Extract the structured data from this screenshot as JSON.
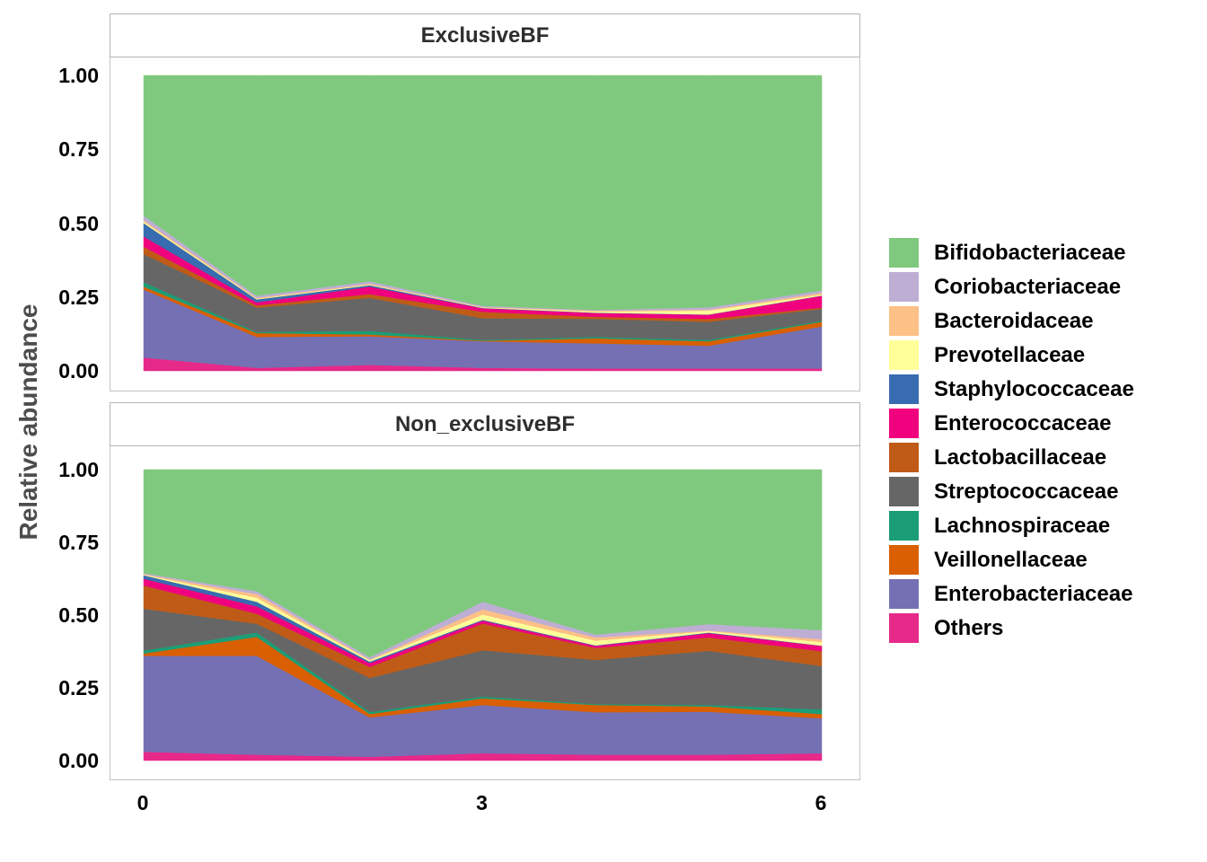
{
  "figure": {
    "y_axis_title": "Relative abundance"
  },
  "axes": {
    "y_tick_labels": [
      "1.00",
      "0.75",
      "0.50",
      "0.25",
      "0.00"
    ],
    "y_tick_values": [
      1.0,
      0.75,
      0.5,
      0.25,
      0.0
    ],
    "x_tick_labels": [
      "0",
      "3",
      "6"
    ],
    "x_tick_values": [
      0,
      3,
      6
    ]
  },
  "legend": {
    "items": [
      {
        "label": "Bifidobacteriaceae",
        "color": "#7FC97F"
      },
      {
        "label": "Coriobacteriaceae",
        "color": "#BEAED4"
      },
      {
        "label": "Bacteroidaceae",
        "color": "#FDC086"
      },
      {
        "label": "Prevotellaceae",
        "color": "#FFFF99"
      },
      {
        "label": "Staphylococcaceae",
        "color": "#386CB0"
      },
      {
        "label": "Enterococcaceae",
        "color": "#F0027F"
      },
      {
        "label": "Lactobacillaceae",
        "color": "#BF5B17"
      },
      {
        "label": "Streptococcaceae",
        "color": "#666666"
      },
      {
        "label": "Lachnospiraceae",
        "color": "#1B9E77"
      },
      {
        "label": "Veillonellaceae",
        "color": "#D95F02"
      },
      {
        "label": "Enterobacteriaceae",
        "color": "#7570B3"
      },
      {
        "label": "Others",
        "color": "#E7298A"
      }
    ]
  },
  "chart_data": {
    "type": "area",
    "stacked": true,
    "normalized": true,
    "title": "",
    "xlabel": "",
    "ylabel": "Relative abundance",
    "ylim": [
      0,
      1
    ],
    "xlim": [
      0,
      6
    ],
    "grid": false,
    "legend_position": "right",
    "x": [
      0,
      1,
      2,
      3,
      4,
      5,
      6
    ],
    "stack_note": "series listed top-of-stack first (legend order); stacking proceeds bottom-up from last series (Others) to first (Bifidobacteriaceae)",
    "panels": [
      {
        "title": "ExclusiveBF",
        "series": [
          {
            "name": "Bifidobacteriaceae",
            "color": "#7FC97F",
            "values": [
              0.475,
              0.746,
              0.697,
              0.78,
              0.794,
              0.785,
              0.728
            ]
          },
          {
            "name": "Coriobacteriaceae",
            "color": "#BEAED4",
            "values": [
              0.015,
              0.007,
              0.008,
              0.004,
              0.002,
              0.008,
              0.008
            ]
          },
          {
            "name": "Bacteroidaceae",
            "color": "#FDC086",
            "values": [
              0.005,
              0.003,
              0.003,
              0.001,
              0.003,
              0.003,
              0.006
            ]
          },
          {
            "name": "Prevotellaceae",
            "color": "#FFFF99",
            "values": [
              0.005,
              0.002,
              0.002,
              0.002,
              0.004,
              0.013,
              0.003
            ]
          },
          {
            "name": "Staphylococcaceae",
            "color": "#386CB0",
            "values": [
              0.045,
              0.01,
              0.005,
              0.001,
              0.001,
              0.001,
              0.001
            ]
          },
          {
            "name": "Enterococcaceae",
            "color": "#F0027F",
            "values": [
              0.035,
              0.01,
              0.025,
              0.012,
              0.013,
              0.014,
              0.04
            ]
          },
          {
            "name": "Lactobacillaceae",
            "color": "#BF5B17",
            "values": [
              0.025,
              0.008,
              0.013,
              0.022,
              0.007,
              0.01,
              0.004
            ]
          },
          {
            "name": "Streptococcaceae",
            "color": "#666666",
            "values": [
              0.095,
              0.082,
              0.112,
              0.073,
              0.061,
              0.061,
              0.04
            ]
          },
          {
            "name": "Lachnospiraceae",
            "color": "#1B9E77",
            "values": [
              0.015,
              0.004,
              0.012,
              0.003,
              0.005,
              0.005,
              0.004
            ]
          },
          {
            "name": "Veillonellaceae",
            "color": "#D95F02",
            "values": [
              0.01,
              0.013,
              0.006,
              0.002,
              0.017,
              0.015,
              0.016
            ]
          },
          {
            "name": "Enterobacteriaceae",
            "color": "#7570B3",
            "values": [
              0.23,
              0.105,
              0.097,
              0.09,
              0.085,
              0.077,
              0.142
            ]
          },
          {
            "name": "Others",
            "color": "#E7298A",
            "values": [
              0.045,
              0.01,
              0.02,
              0.01,
              0.008,
              0.008,
              0.008
            ]
          }
        ]
      },
      {
        "title": "Non_exclusiveBF",
        "series": [
          {
            "name": "Bifidobacteriaceae",
            "color": "#7FC97F",
            "values": [
              0.356,
              0.418,
              0.645,
              0.454,
              0.567,
              0.531,
              0.552
            ]
          },
          {
            "name": "Coriobacteriaceae",
            "color": "#BEAED4",
            "values": [
              0.003,
              0.01,
              0.008,
              0.026,
              0.01,
              0.022,
              0.031
            ]
          },
          {
            "name": "Bacteroidaceae",
            "color": "#FDC086",
            "values": [
              0.002,
              0.012,
              0.002,
              0.018,
              0.011,
              0.002,
              0.01
            ]
          },
          {
            "name": "Prevotellaceae",
            "color": "#FFFF99",
            "values": [
              0.002,
              0.014,
              0.005,
              0.018,
              0.016,
              0.005,
              0.012
            ]
          },
          {
            "name": "Staphylococcaceae",
            "color": "#386CB0",
            "values": [
              0.012,
              0.016,
              0.005,
              0.003,
              0.002,
              0.002,
              0.001
            ]
          },
          {
            "name": "Enterococcaceae",
            "color": "#F0027F",
            "values": [
              0.023,
              0.025,
              0.013,
              0.01,
              0.007,
              0.015,
              0.018
            ]
          },
          {
            "name": "Lactobacillaceae",
            "color": "#BF5B17",
            "values": [
              0.08,
              0.035,
              0.038,
              0.092,
              0.041,
              0.046,
              0.051
            ]
          },
          {
            "name": "Streptococcaceae",
            "color": "#666666",
            "values": [
              0.144,
              0.03,
              0.117,
              0.159,
              0.152,
              0.186,
              0.149
            ]
          },
          {
            "name": "Lachnospiraceae",
            "color": "#1B9E77",
            "values": [
              0.01,
              0.015,
              0.007,
              0.006,
              0.003,
              0.005,
              0.016
            ]
          },
          {
            "name": "Veillonellaceae",
            "color": "#D95F02",
            "values": [
              0.008,
              0.065,
              0.012,
              0.023,
              0.025,
              0.018,
              0.015
            ]
          },
          {
            "name": "Enterobacteriaceae",
            "color": "#7570B3",
            "values": [
              0.33,
              0.34,
              0.135,
              0.166,
              0.146,
              0.148,
              0.12
            ]
          },
          {
            "name": "Others",
            "color": "#E7298A",
            "values": [
              0.03,
              0.02,
              0.013,
              0.025,
              0.02,
              0.02,
              0.025
            ]
          }
        ]
      }
    ]
  }
}
